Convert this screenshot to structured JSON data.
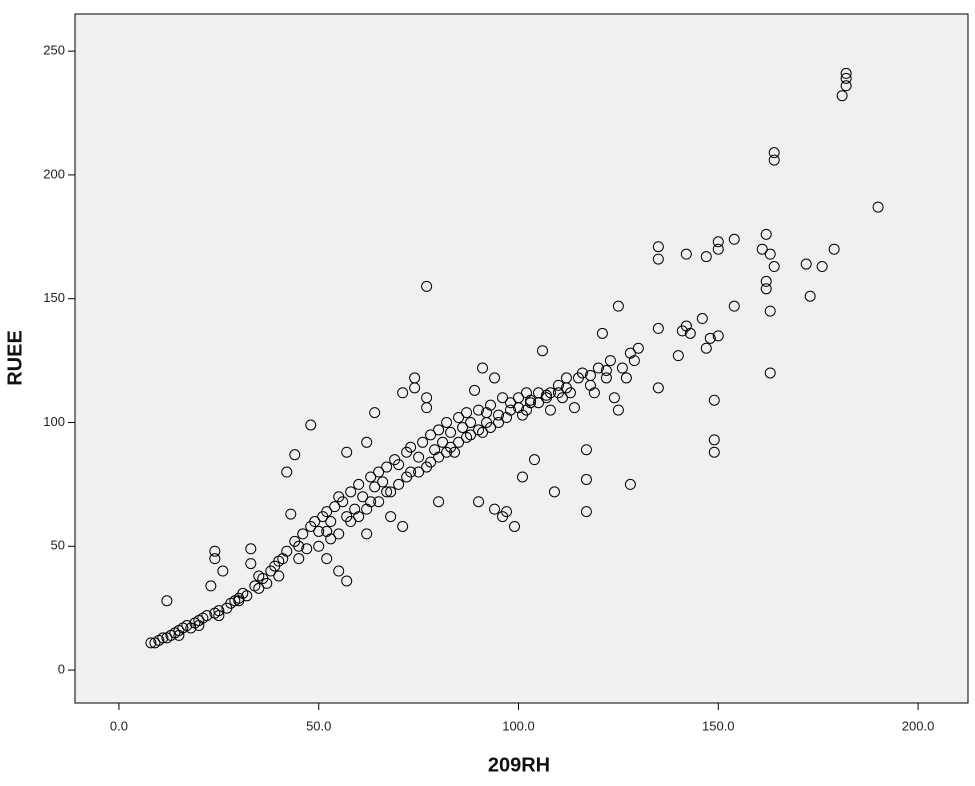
{
  "chart_data": {
    "type": "scatter",
    "x_label": "209RH",
    "y_label": "RUEE",
    "xlim": [
      -11,
      212.5
    ],
    "ylim": [
      -13.3,
      265
    ],
    "xticks": [
      {
        "value": 0,
        "label": "0.0"
      },
      {
        "value": 50,
        "label": "50.0"
      },
      {
        "value": 100,
        "label": "100.0"
      },
      {
        "value": 150,
        "label": "150.0"
      },
      {
        "value": 200,
        "label": "200.0"
      }
    ],
    "yticks": [
      0,
      50,
      100,
      150,
      200,
      250
    ],
    "color": "#000000",
    "background": "#f0f0f0",
    "x": [
      8,
      9,
      10,
      11,
      12,
      12,
      13,
      14,
      15,
      16,
      17,
      18,
      19,
      20,
      21,
      22,
      23,
      24,
      24,
      24,
      25,
      26,
      27,
      28,
      29,
      30,
      31,
      32,
      33,
      33,
      34,
      35,
      36,
      37,
      38,
      39,
      40,
      41,
      42,
      42,
      43,
      44,
      44,
      45,
      46,
      47,
      48,
      48,
      49,
      50,
      51,
      52,
      52,
      53,
      54,
      55,
      55,
      56,
      57,
      57,
      58,
      59,
      60,
      61,
      62,
      62,
      63,
      64,
      64,
      65,
      66,
      67,
      68,
      69,
      70,
      71,
      71,
      72,
      73,
      74,
      74,
      75,
      76,
      77,
      77,
      77,
      78,
      79,
      80,
      80,
      81,
      82,
      83,
      84,
      85,
      86,
      87,
      88,
      89,
      90,
      90,
      91,
      91,
      92,
      93,
      94,
      94,
      95,
      96,
      96,
      97,
      98,
      99,
      100,
      101,
      101,
      102,
      103,
      104,
      105,
      106,
      107,
      108,
      109,
      110,
      111,
      112,
      113,
      114,
      115,
      116,
      117,
      117,
      117,
      118,
      119,
      120,
      121,
      122,
      123,
      124,
      125,
      125,
      126,
      127,
      128,
      128,
      129,
      130,
      135,
      135,
      135,
      135,
      140,
      141,
      142,
      142,
      143,
      146,
      147,
      147,
      148,
      149,
      149,
      149,
      150,
      150,
      150,
      154,
      154,
      161,
      162,
      162,
      162,
      163,
      163,
      163,
      164,
      164,
      164,
      172,
      173,
      176,
      179,
      181,
      182,
      182,
      182,
      190,
      45,
      50,
      55,
      58,
      60,
      62,
      65,
      68,
      70,
      72,
      75,
      78,
      80,
      83,
      85,
      88,
      90,
      92,
      95,
      98,
      100,
      103,
      105,
      108,
      110,
      40,
      35,
      30,
      25,
      20,
      15,
      52,
      57,
      63,
      67,
      73,
      77,
      82,
      87,
      93,
      97,
      102,
      107,
      112,
      118,
      122,
      53
    ],
    "values": [
      11,
      11,
      12,
      13,
      13,
      28,
      14,
      15,
      16,
      17,
      18,
      17,
      19,
      20,
      21,
      22,
      34,
      48,
      45,
      23,
      24,
      40,
      25,
      27,
      28,
      29,
      31,
      30,
      43,
      49,
      34,
      38,
      37,
      35,
      40,
      42,
      44,
      45,
      48,
      80,
      63,
      87,
      52,
      50,
      55,
      49,
      58,
      99,
      60,
      56,
      62,
      64,
      45,
      60,
      66,
      70,
      40,
      68,
      88,
      36,
      72,
      65,
      75,
      70,
      92,
      55,
      78,
      104,
      74,
      80,
      76,
      82,
      62,
      85,
      83,
      112,
      58,
      88,
      90,
      118,
      114,
      86,
      92,
      155,
      106,
      110,
      95,
      89,
      68,
      97,
      92,
      100,
      96,
      88,
      102,
      98,
      104,
      100,
      113,
      105,
      68,
      122,
      96,
      104,
      107,
      118,
      65,
      100,
      110,
      62,
      64,
      108,
      58,
      110,
      103,
      78,
      112,
      108,
      85,
      112,
      129,
      110,
      105,
      72,
      115,
      110,
      118,
      112,
      106,
      118,
      120,
      89,
      64,
      77,
      115,
      112,
      122,
      136,
      118,
      125,
      110,
      147,
      105,
      122,
      118,
      128,
      75,
      125,
      130,
      166,
      171,
      138,
      114,
      127,
      137,
      139,
      168,
      136,
      142,
      167,
      130,
      134,
      109,
      93,
      88,
      173,
      170,
      135,
      174,
      147,
      170,
      176,
      157,
      154,
      168,
      145,
      120,
      163,
      209,
      206,
      164,
      151,
      163,
      170,
      232,
      241,
      239,
      236,
      187,
      45,
      50,
      55,
      60,
      62,
      65,
      68,
      72,
      75,
      78,
      80,
      84,
      86,
      90,
      92,
      95,
      97,
      100,
      103,
      105,
      106,
      109,
      108,
      112,
      112,
      38,
      33,
      28,
      22,
      18,
      14,
      56,
      62,
      68,
      72,
      80,
      82,
      88,
      94,
      98,
      102,
      105,
      111,
      114,
      119,
      121,
      53
    ]
  }
}
